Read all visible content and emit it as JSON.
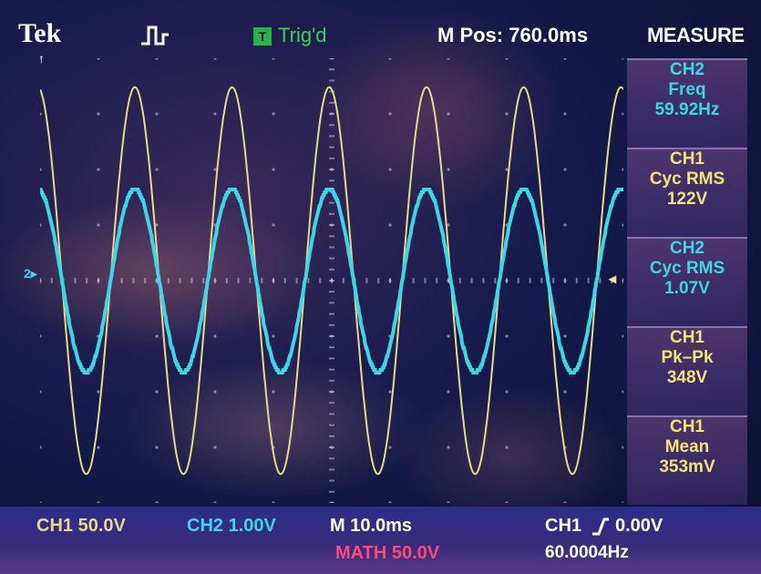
{
  "header": {
    "brand": "Tek",
    "trigger_status": "Trig'd",
    "trigger_badge": "T",
    "m_pos": "M Pos: 760.0ms",
    "measure_title": "MEASURE"
  },
  "measurements": [
    {
      "channel": "CH2",
      "label": "Freq",
      "value": "59.92Hz"
    },
    {
      "channel": "CH1",
      "label": "Cyc RMS",
      "value": "122V"
    },
    {
      "channel": "CH2",
      "label": "Cyc RMS",
      "value": "1.07V"
    },
    {
      "channel": "CH1",
      "label": "Pk–Pk",
      "value": "348V"
    },
    {
      "channel": "CH1",
      "label": "Mean",
      "value": "353mV"
    }
  ],
  "footer": {
    "ch1_scale": "CH1  50.0V",
    "ch2_scale": "CH2  1.00V",
    "timebase": "M 10.0ms",
    "math_scale": "MATH 50.0V",
    "trigger_source": "CH1",
    "trigger_level": "0.00V",
    "trigger_freq": "60.0004Hz"
  },
  "markers": {
    "ch2_marker": "2▸",
    "trigger_level_marker": "◂"
  },
  "colors": {
    "ch1": "#e8d98a",
    "ch2": "#3ed6e6",
    "math": "#ff4a7a",
    "measure_text": "#f2e27a",
    "measure_ch2_text": "#3ed6e6",
    "trig_green": "#3ad05a"
  },
  "waveforms": {
    "ch1": {
      "frequency_hz": 59.92,
      "visible_cycles": 6,
      "pk_pk_v": 348,
      "volts_per_div": 50.0
    },
    "ch2": {
      "frequency_hz": 59.92,
      "visible_cycles": 6,
      "pk_pk_divs": 3.3,
      "volts_per_div": 1.0,
      "offset_divs": 0
    }
  }
}
